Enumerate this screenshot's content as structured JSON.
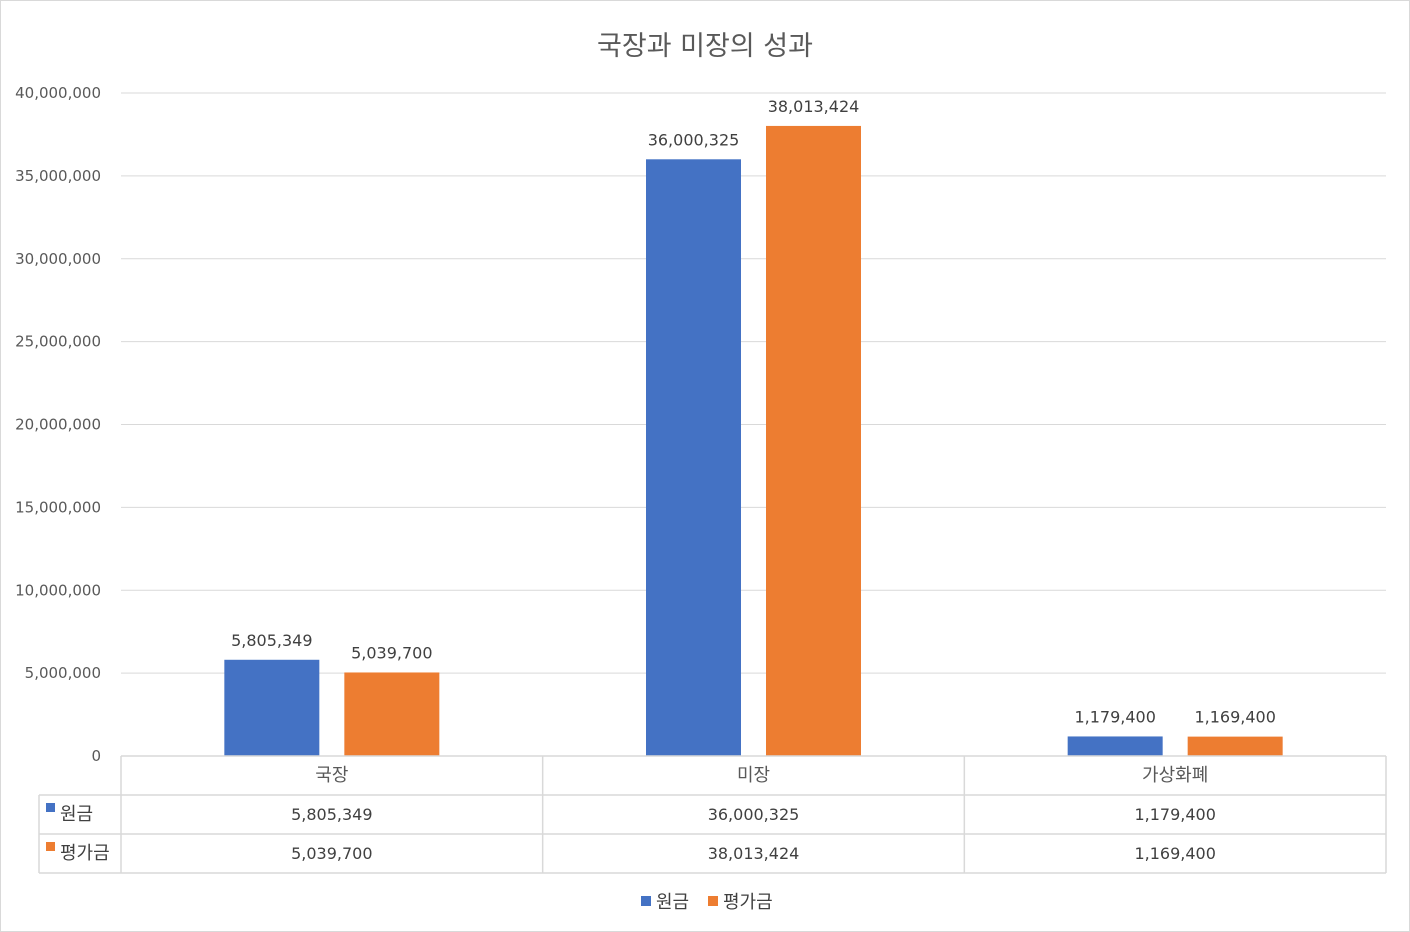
{
  "chart_data": {
    "type": "bar",
    "title": "국장과 미장의 성과",
    "categories": [
      "국장",
      "미장",
      "가상화폐"
    ],
    "series": [
      {
        "name": "원금",
        "color": "#4472c4",
        "values": [
          5805349,
          36000325,
          1179400
        ],
        "labels": [
          "5,805,349",
          "36,000,325",
          "1,179,400"
        ]
      },
      {
        "name": "평가금",
        "color": "#ed7d31",
        "values": [
          5039700,
          38013424,
          1169400
        ],
        "labels": [
          "5,039,700",
          "38,013,424",
          "1,169,400"
        ]
      }
    ],
    "ylim": [
      0,
      40000000
    ],
    "yticks": [
      0,
      5000000,
      10000000,
      15000000,
      20000000,
      25000000,
      30000000,
      35000000,
      40000000
    ],
    "ytick_labels": [
      "0",
      "5,000,000",
      "10,000,000",
      "15,000,000",
      "20,000,000",
      "25,000,000",
      "30,000,000",
      "35,000,000",
      "40,000,000"
    ],
    "grid": true,
    "legend_position": "bottom",
    "data_table": true
  }
}
